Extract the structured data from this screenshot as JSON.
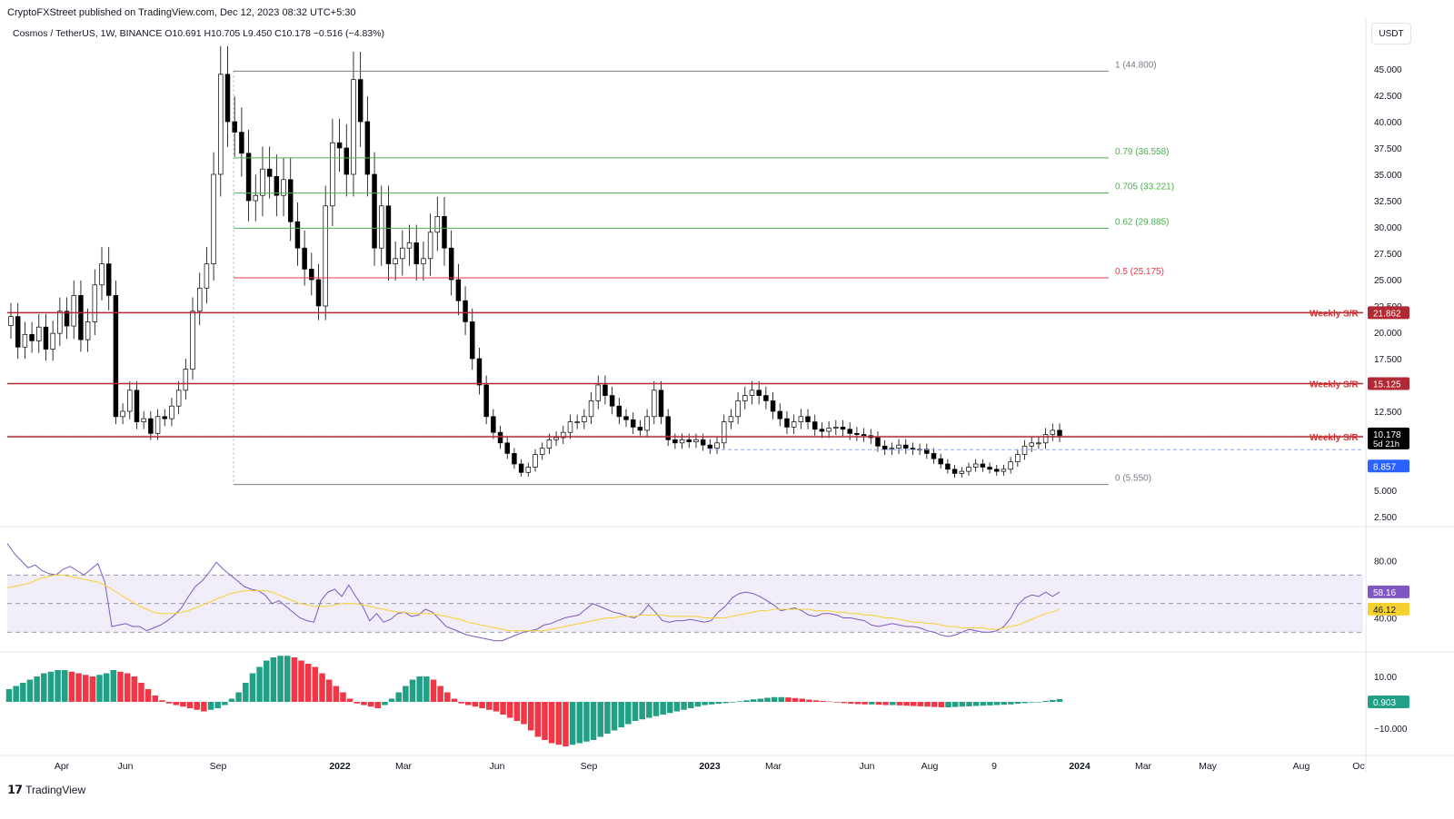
{
  "header": {
    "published": "CryptoFXStreet published on TradingView.com, Dec 12, 2023 08:32 UTC+5:30",
    "symbol_line": "Cosmos / TetherUS, 1W, BINANCE  O10.691  H10.705  L9.450  C10.178  −0.516 (−4.83%)",
    "currency": "USDT"
  },
  "footer": {
    "brand": "TradingView",
    "logo_icon": "tradingview-logo-icon"
  },
  "colors": {
    "up": "#ffffff",
    "down": "#000000",
    "fib_green": "#4caf50",
    "fib_red": "#f23645",
    "sr_line": "#b22833",
    "rsi": "#7e57c2",
    "rsi_ma": "#f5d130",
    "hist_pos": "#22a085",
    "hist_neg": "#f23645"
  },
  "chart_data": [
    {
      "type": "candlestick",
      "title": "Cosmos / TetherUS, 1W, BINANCE",
      "ylim": [
        2.0,
        47.5
      ],
      "y_ticks": [
        "45.000",
        "42.500",
        "40.000",
        "37.500",
        "35.000",
        "32.500",
        "30.000",
        "27.500",
        "25.000",
        "22.500",
        "20.000",
        "17.500",
        "15.000",
        "12.500",
        "7.500",
        "5.000",
        "2.500"
      ],
      "x_ticks": [
        "Apr",
        "Jun",
        "Sep",
        "2022",
        "Mar",
        "Jun",
        "Sep",
        "2023",
        "Mar",
        "Jun",
        "Aug",
        "9",
        "2024",
        "Mar",
        "May",
        "Aug",
        "Oc"
      ],
      "fib_levels": [
        {
          "label": "1 (44.800)",
          "value": 44.8,
          "color": "#787b86"
        },
        {
          "label": "0.79 (36.558)",
          "value": 36.558,
          "color": "#4caf50"
        },
        {
          "label": "0.705 (33.221)",
          "value": 33.221,
          "color": "#4caf50"
        },
        {
          "label": "0.62 (29.885)",
          "value": 29.885,
          "color": "#4caf50"
        },
        {
          "label": "0.5 (25.175)",
          "value": 25.175,
          "color": "#f23645"
        },
        {
          "label": "0 (5.550)",
          "value": 5.55,
          "color": "#787b86"
        }
      ],
      "support_resistance": [
        {
          "label": "Weekly S/R",
          "value": 21.862,
          "price_tag": "21.862"
        },
        {
          "label": "Weekly S/R",
          "value": 15.125,
          "price_tag": "15.125"
        },
        {
          "label": "Weekly S/R",
          "value": 10.087,
          "price_tag": "10.087"
        }
      ],
      "price_tags": {
        "last": "10.178",
        "countdown": "5d 21h",
        "low_mark": "8.857"
      },
      "closes": [
        21.5,
        18.6,
        19.8,
        19.2,
        20.5,
        18.4,
        19.9,
        22.0,
        20.6,
        23.5,
        19.3,
        21.0,
        24.5,
        26.5,
        23.5,
        12.0,
        12.5,
        14.5,
        11.5,
        11.8,
        10.4,
        12.0,
        11.8,
        13.0,
        14.5,
        16.5,
        22.0,
        24.2,
        26.5,
        35.0,
        44.5,
        40.0,
        39.0,
        37.0,
        32.5,
        33.0,
        35.5,
        34.8,
        33.0,
        34.5,
        30.5,
        28.0,
        26.0,
        25.0,
        22.5,
        32.0,
        38.0,
        37.5,
        35.0,
        44.0,
        40.0,
        35.0,
        28.0,
        32.0,
        26.5,
        27.0,
        28.0,
        28.5,
        26.5,
        27.0,
        29.5,
        31.0,
        28.0,
        25.0,
        23.0,
        21.0,
        17.5,
        15.0,
        12.0,
        10.5,
        9.5,
        8.5,
        7.5,
        6.7,
        7.2,
        8.4,
        9.0,
        9.8,
        10.0,
        10.5,
        11.5,
        11.5,
        12.0,
        13.5,
        15.0,
        14.0,
        13.0,
        12.0,
        11.7,
        11.0,
        10.7,
        12.0,
        14.5,
        12.0,
        9.8,
        9.5,
        9.8,
        9.6,
        9.8,
        9.3,
        9.0,
        9.5,
        11.5,
        12.0,
        13.5,
        14.0,
        14.5,
        14.0,
        13.5,
        12.5,
        11.8,
        11.0,
        11.5,
        12.0,
        11.5,
        10.8,
        10.6,
        10.9,
        11.0,
        10.8,
        10.4,
        10.3,
        10.2,
        10.0,
        9.2,
        8.9,
        9.0,
        9.3,
        9.0,
        8.9,
        8.9,
        8.5,
        8.0,
        7.5,
        7.0,
        6.6,
        6.8,
        7.2,
        7.5,
        7.2,
        7.0,
        6.8,
        7.0,
        7.7,
        8.4,
        9.2,
        9.5,
        9.5,
        10.3,
        10.7,
        10.178
      ]
    },
    {
      "type": "line",
      "title": "RSI",
      "ylim": [
        20,
        100
      ],
      "y_ticks": [
        "80.00",
        "40.00"
      ],
      "bands": [
        70,
        50,
        30
      ],
      "series": [
        {
          "name": "",
          "values": [
            92,
            85,
            80,
            75,
            77,
            73,
            71,
            70,
            74,
            76,
            73,
            70,
            74,
            78,
            65,
            34,
            35,
            36,
            34,
            34,
            31,
            33,
            35,
            38,
            42,
            47,
            55,
            62,
            66,
            72,
            79,
            74,
            70,
            66,
            62,
            60,
            59,
            56,
            50,
            52,
            48,
            44,
            40,
            38,
            37,
            52,
            58,
            60,
            55,
            63,
            55,
            48,
            38,
            43,
            37,
            39,
            43,
            44,
            41,
            42,
            46,
            44,
            39,
            34,
            32,
            30,
            28,
            27,
            26,
            25,
            24,
            24,
            26,
            28,
            30,
            31,
            32,
            35,
            36,
            38,
            40,
            41,
            42,
            46,
            50,
            48,
            46,
            44,
            43,
            41,
            40,
            43,
            49,
            44,
            38,
            37,
            38,
            38,
            39,
            38,
            37,
            38,
            44,
            48,
            54,
            57,
            58,
            57,
            55,
            52,
            49,
            45,
            46,
            47,
            45,
            42,
            41,
            43,
            43,
            42,
            40,
            40,
            39,
            38,
            35,
            34,
            35,
            36,
            35,
            34,
            34,
            33,
            31,
            30,
            28,
            27,
            28,
            30,
            32,
            31,
            30,
            30,
            31,
            34,
            40,
            49,
            54,
            56,
            55,
            58,
            55,
            58.16
          ]
        },
        {
          "name": "",
          "values": [
            61,
            62,
            63,
            64,
            66,
            68,
            69,
            70,
            70,
            69,
            68,
            67,
            66,
            65,
            63,
            60,
            57,
            54,
            51,
            48,
            46,
            44,
            43,
            43,
            43,
            44,
            45,
            47,
            49,
            51,
            53,
            55,
            57,
            58,
            59,
            59,
            59,
            59,
            58,
            56,
            54,
            52,
            50,
            49,
            48,
            48,
            48,
            49,
            50,
            50,
            50,
            49,
            48,
            47,
            46,
            45,
            44,
            44,
            43,
            43,
            43,
            43,
            42,
            41,
            40,
            39,
            37,
            36,
            35,
            34,
            33,
            32,
            31,
            31,
            31,
            31,
            31,
            31,
            32,
            33,
            34,
            35,
            36,
            37,
            38,
            39,
            40,
            40,
            41,
            41,
            41,
            42,
            42,
            42,
            42,
            41,
            41,
            41,
            41,
            41,
            40,
            40,
            40,
            40,
            41,
            42,
            43,
            44,
            45,
            45,
            46,
            46,
            46,
            46,
            46,
            46,
            45,
            45,
            45,
            44,
            44,
            43,
            43,
            42,
            42,
            41,
            40,
            40,
            39,
            38,
            37,
            37,
            36,
            36,
            35,
            34,
            34,
            33,
            33,
            33,
            33,
            32,
            32,
            33,
            34,
            35,
            37,
            39,
            41,
            43,
            44,
            46.12
          ]
        }
      ],
      "labels": {
        "rsi_tag": "58.16",
        "ma_tag": "46.12"
      }
    },
    {
      "type": "bar",
      "title": "Histogram",
      "ylim": [
        -14,
        17
      ],
      "y_ticks": [
        "10.00",
        "−10.000"
      ],
      "values": [
        4,
        5,
        6,
        7,
        8,
        9,
        9.5,
        10,
        10,
        9.5,
        9,
        8.5,
        8,
        8.5,
        9,
        10,
        9.5,
        9,
        8,
        6,
        4,
        2,
        0.5,
        -0.5,
        -1,
        -1.5,
        -2,
        -2.5,
        -3,
        -2.5,
        -2,
        -1,
        1,
        3,
        6,
        9,
        11,
        13,
        14,
        14.5,
        14.5,
        14,
        13,
        12,
        11,
        9,
        7,
        5,
        3,
        1,
        -0.5,
        -1,
        -1.5,
        -2,
        -1,
        1,
        3,
        5,
        7,
        8,
        8,
        7,
        5,
        3,
        1,
        -0.5,
        -1,
        -1.5,
        -2,
        -2.5,
        -3,
        -4,
        -5,
        -6,
        -7,
        -9,
        -11,
        -12,
        -13,
        -13.5,
        -14,
        -13.5,
        -13,
        -12.5,
        -12,
        -11,
        -10,
        -9,
        -8,
        -7,
        -6,
        -5.5,
        -5,
        -4.5,
        -4,
        -3.5,
        -3,
        -2.5,
        -2,
        -1.5,
        -1,
        -0.8,
        -0.6,
        -0.4,
        -0.2,
        0.2,
        0.5,
        0.8,
        1,
        1.3,
        1.5,
        1.5,
        1.4,
        1.2,
        1,
        0.7,
        0.5,
        0.3,
        0.1,
        -0.2,
        -0.4,
        -0.6,
        -0.7,
        -0.8,
        -0.8,
        -0.9,
        -1,
        -1,
        -1.1,
        -1.2,
        -1.3,
        -1.4,
        -1.5,
        -1.6,
        -1.7,
        -1.7,
        -1.6,
        -1.5,
        -1.4,
        -1.3,
        -1.2,
        -1.1,
        -1,
        -0.9,
        -0.8,
        -0.6,
        -0.4,
        -0.2,
        0,
        0.3,
        0.6,
        0.903
      ],
      "labels": {
        "hist_tag": "0.903"
      }
    }
  ]
}
